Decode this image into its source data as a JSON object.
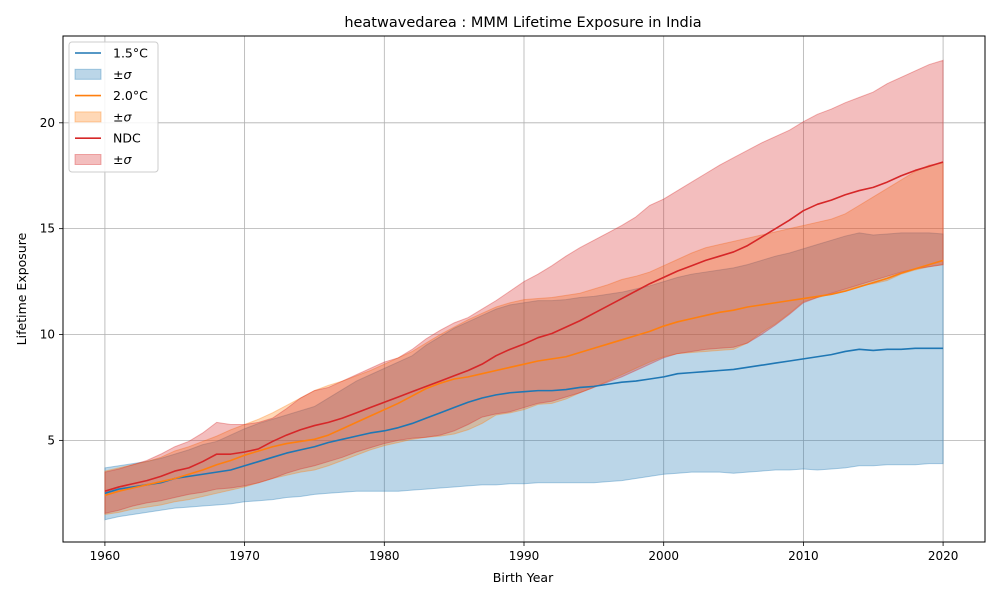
{
  "chart_data": {
    "type": "area",
    "title": "heatwavedarea : MMM Lifetime Exposure in India",
    "xlabel": "Birth Year",
    "ylabel": "Lifetime Exposure",
    "xlim": [
      1957,
      2023
    ],
    "ylim": [
      0.2,
      24.1
    ],
    "x_ticks": [
      1960,
      1970,
      1980,
      1990,
      2000,
      2010,
      2020
    ],
    "y_ticks": [
      5,
      10,
      15,
      20
    ],
    "grid": true,
    "legend_position": "top-left",
    "x": [
      1960,
      1961,
      1962,
      1963,
      1964,
      1965,
      1966,
      1967,
      1968,
      1969,
      1970,
      1971,
      1972,
      1973,
      1974,
      1975,
      1976,
      1977,
      1978,
      1979,
      1980,
      1981,
      1982,
      1983,
      1984,
      1985,
      1986,
      1987,
      1988,
      1989,
      1990,
      1991,
      1992,
      1993,
      1994,
      1995,
      1996,
      1997,
      1998,
      1999,
      2000,
      2001,
      2002,
      2003,
      2004,
      2005,
      2006,
      2007,
      2008,
      2009,
      2010,
      2011,
      2012,
      2013,
      2014,
      2015,
      2016,
      2017,
      2018,
      2019,
      2020
    ],
    "series": [
      {
        "name": "1.5°C",
        "band_name": "±σ",
        "color": "#1f77b4",
        "fill": "#1f77b4",
        "mean": [
          2.5,
          2.7,
          2.8,
          2.9,
          3.0,
          3.2,
          3.3,
          3.4,
          3.5,
          3.6,
          3.8,
          4.0,
          4.2,
          4.4,
          4.55,
          4.7,
          4.9,
          5.05,
          5.2,
          5.35,
          5.45,
          5.6,
          5.8,
          6.05,
          6.3,
          6.55,
          6.8,
          7.0,
          7.15,
          7.25,
          7.3,
          7.35,
          7.35,
          7.4,
          7.5,
          7.55,
          7.65,
          7.75,
          7.8,
          7.9,
          8.0,
          8.15,
          8.2,
          8.25,
          8.3,
          8.35,
          8.45,
          8.55,
          8.65,
          8.75,
          8.85,
          8.95,
          9.05,
          9.2,
          9.3,
          9.25,
          9.3,
          9.3,
          9.35,
          9.35,
          9.35
        ],
        "lower": [
          1.25,
          1.4,
          1.5,
          1.6,
          1.7,
          1.8,
          1.85,
          1.9,
          1.95,
          2.0,
          2.1,
          2.15,
          2.2,
          2.3,
          2.35,
          2.45,
          2.5,
          2.55,
          2.6,
          2.6,
          2.6,
          2.6,
          2.65,
          2.7,
          2.75,
          2.8,
          2.85,
          2.9,
          2.9,
          2.95,
          2.95,
          3.0,
          3.0,
          3.0,
          3.0,
          3.0,
          3.05,
          3.1,
          3.2,
          3.3,
          3.4,
          3.45,
          3.5,
          3.5,
          3.5,
          3.45,
          3.5,
          3.55,
          3.6,
          3.6,
          3.65,
          3.6,
          3.65,
          3.7,
          3.8,
          3.8,
          3.85,
          3.85,
          3.85,
          3.9,
          3.9
        ],
        "upper": [
          3.7,
          3.8,
          3.9,
          4.0,
          4.15,
          4.35,
          4.55,
          4.8,
          4.95,
          5.25,
          5.55,
          5.8,
          6.0,
          6.2,
          6.4,
          6.6,
          7.0,
          7.4,
          7.8,
          8.1,
          8.4,
          8.7,
          9.0,
          9.5,
          9.9,
          10.3,
          10.6,
          10.9,
          11.2,
          11.4,
          11.5,
          11.6,
          11.6,
          11.65,
          11.75,
          11.8,
          11.9,
          12.0,
          12.15,
          12.3,
          12.5,
          12.7,
          12.85,
          12.95,
          13.05,
          13.15,
          13.3,
          13.5,
          13.7,
          13.85,
          14.05,
          14.25,
          14.45,
          14.65,
          14.8,
          14.7,
          14.75,
          14.8,
          14.8,
          14.8,
          14.75
        ]
      },
      {
        "name": "2.0°C",
        "band_name": "±σ",
        "color": "#ff7f0e",
        "fill": "#ff7f0e",
        "mean": [
          2.4,
          2.6,
          2.75,
          2.9,
          3.05,
          3.2,
          3.4,
          3.6,
          3.85,
          4.05,
          4.3,
          4.5,
          4.7,
          4.85,
          4.95,
          5.05,
          5.25,
          5.55,
          5.85,
          6.15,
          6.45,
          6.75,
          7.1,
          7.45,
          7.7,
          7.9,
          8.0,
          8.15,
          8.3,
          8.45,
          8.6,
          8.75,
          8.85,
          8.95,
          9.15,
          9.35,
          9.55,
          9.75,
          9.95,
          10.15,
          10.4,
          10.6,
          10.75,
          10.9,
          11.05,
          11.15,
          11.3,
          11.4,
          11.5,
          11.6,
          11.7,
          11.8,
          11.9,
          12.05,
          12.25,
          12.45,
          12.65,
          12.9,
          13.1,
          13.3,
          13.5
        ],
        "lower": [
          1.5,
          1.6,
          1.75,
          1.85,
          1.95,
          2.1,
          2.2,
          2.35,
          2.5,
          2.65,
          2.8,
          3.0,
          3.2,
          3.35,
          3.5,
          3.6,
          3.8,
          4.05,
          4.3,
          4.55,
          4.75,
          4.9,
          5.05,
          5.15,
          5.2,
          5.3,
          5.5,
          5.8,
          6.2,
          6.3,
          6.45,
          6.7,
          6.75,
          6.95,
          7.25,
          7.5,
          7.8,
          8.1,
          8.4,
          8.7,
          8.95,
          9.1,
          9.15,
          9.2,
          9.25,
          9.3,
          9.6,
          10.1,
          10.5,
          11.0,
          11.55,
          11.75,
          11.9,
          12.1,
          12.3,
          12.4,
          12.55,
          12.85,
          13.05,
          13.2,
          13.3
        ],
        "upper": [
          3.55,
          3.7,
          3.85,
          4.0,
          4.2,
          4.5,
          4.7,
          4.95,
          5.2,
          5.5,
          5.75,
          6.0,
          6.3,
          6.65,
          7.0,
          7.35,
          7.6,
          7.8,
          8.05,
          8.3,
          8.6,
          8.9,
          9.2,
          9.6,
          10.0,
          10.35,
          10.7,
          11.0,
          11.3,
          11.5,
          11.65,
          11.7,
          11.75,
          11.85,
          11.95,
          12.15,
          12.35,
          12.6,
          12.75,
          12.95,
          13.25,
          13.55,
          13.85,
          14.1,
          14.25,
          14.4,
          14.55,
          14.7,
          14.85,
          15.0,
          15.15,
          15.3,
          15.45,
          15.7,
          16.1,
          16.5,
          16.9,
          17.3,
          17.7,
          18.0,
          18.1
        ]
      },
      {
        "name": "NDC",
        "band_name": "±σ",
        "color": "#d62728",
        "fill": "#d62728",
        "mean": [
          2.6,
          2.8,
          2.95,
          3.1,
          3.3,
          3.55,
          3.7,
          4.0,
          4.35,
          4.35,
          4.45,
          4.6,
          4.95,
          5.25,
          5.5,
          5.7,
          5.85,
          6.05,
          6.3,
          6.55,
          6.8,
          7.05,
          7.3,
          7.55,
          7.8,
          8.05,
          8.3,
          8.6,
          9.0,
          9.3,
          9.55,
          9.85,
          10.05,
          10.35,
          10.65,
          11.0,
          11.35,
          11.7,
          12.05,
          12.4,
          12.7,
          13.0,
          13.25,
          13.5,
          13.7,
          13.9,
          14.2,
          14.6,
          15.0,
          15.4,
          15.85,
          16.15,
          16.35,
          16.6,
          16.8,
          16.95,
          17.2,
          17.5,
          17.75,
          17.95,
          18.15
        ],
        "lower": [
          1.55,
          1.7,
          1.9,
          2.05,
          2.15,
          2.3,
          2.45,
          2.55,
          2.7,
          2.75,
          2.85,
          3.0,
          3.2,
          3.45,
          3.65,
          3.8,
          4.0,
          4.2,
          4.45,
          4.65,
          4.85,
          5.0,
          5.1,
          5.15,
          5.25,
          5.45,
          5.75,
          6.1,
          6.25,
          6.35,
          6.55,
          6.75,
          6.85,
          7.05,
          7.25,
          7.5,
          7.75,
          8.0,
          8.3,
          8.6,
          8.9,
          9.1,
          9.2,
          9.3,
          9.35,
          9.4,
          9.6,
          10.0,
          10.45,
          10.95,
          11.5,
          11.75,
          11.95,
          12.15,
          12.35,
          12.55,
          12.75,
          12.95,
          13.1,
          13.2,
          13.3
        ],
        "upper": [
          3.5,
          3.65,
          3.85,
          4.05,
          4.35,
          4.7,
          4.95,
          5.35,
          5.85,
          5.75,
          5.75,
          5.85,
          6.05,
          6.5,
          7.0,
          7.35,
          7.5,
          7.8,
          8.1,
          8.4,
          8.7,
          8.9,
          9.3,
          9.8,
          10.2,
          10.55,
          10.8,
          11.2,
          11.6,
          12.05,
          12.5,
          12.85,
          13.25,
          13.7,
          14.1,
          14.45,
          14.8,
          15.15,
          15.55,
          16.1,
          16.4,
          16.8,
          17.2,
          17.6,
          18.0,
          18.35,
          18.7,
          19.05,
          19.35,
          19.65,
          20.05,
          20.4,
          20.65,
          20.95,
          21.2,
          21.45,
          21.85,
          22.15,
          22.45,
          22.75,
          22.95
        ]
      }
    ]
  }
}
